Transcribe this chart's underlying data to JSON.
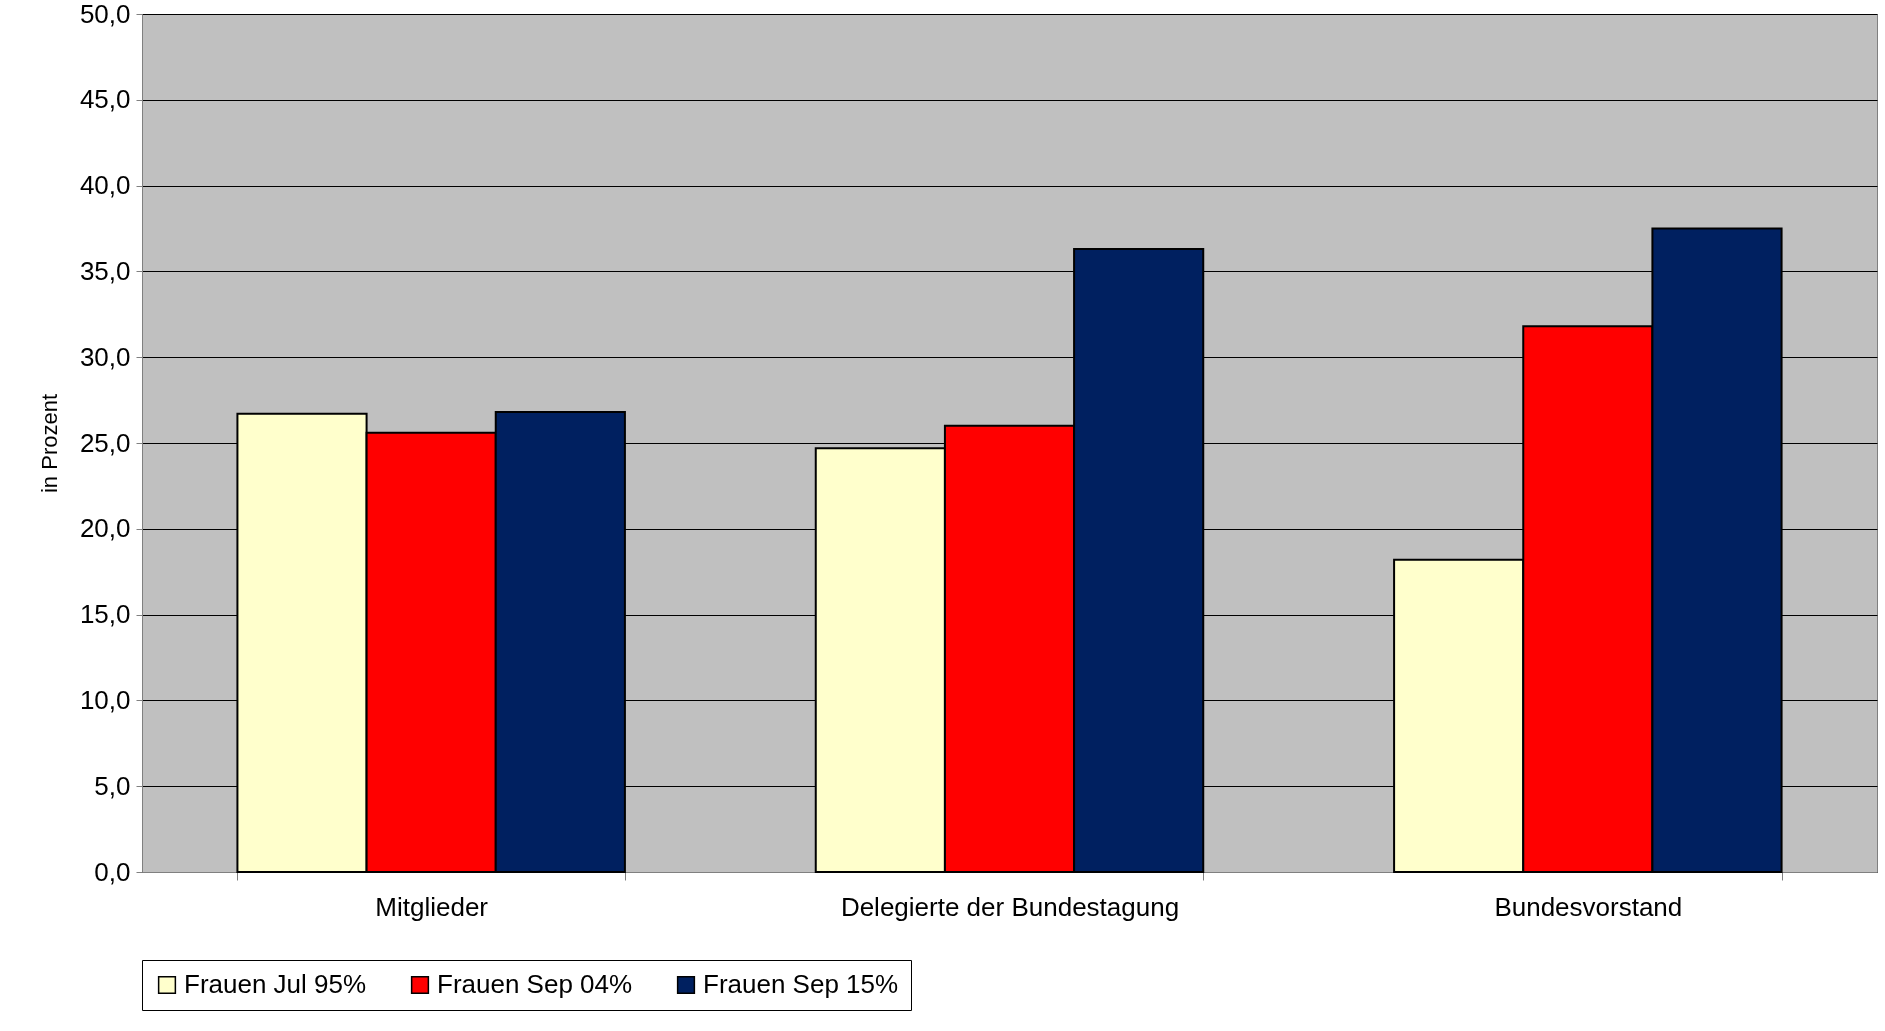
{
  "chart_data": {
    "type": "bar",
    "ylabel": "in Prozent",
    "categories": [
      "Mitglieder",
      "Delegierte der Bundestagung",
      "Bundesvorstand"
    ],
    "series": [
      {
        "name": "Frauen Jul 95%",
        "color": "#ffffcc",
        "values": [
          26.7,
          24.7,
          18.2
        ]
      },
      {
        "name": "Frauen Sep 04%",
        "color": "#ff0000",
        "values": [
          25.6,
          26.0,
          31.8
        ]
      },
      {
        "name": "Frauen Sep 15%",
        "color": "#002060",
        "values": [
          26.8,
          36.3,
          37.5
        ]
      }
    ],
    "ylim": [
      0,
      50
    ],
    "yticks": [
      {
        "value": 0,
        "label": "0,0"
      },
      {
        "value": 5,
        "label": "5,0"
      },
      {
        "value": 10,
        "label": "10,0"
      },
      {
        "value": 15,
        "label": "15,0"
      },
      {
        "value": 20,
        "label": "20,0"
      },
      {
        "value": 25,
        "label": "25,0"
      },
      {
        "value": 30,
        "label": "30,0"
      },
      {
        "value": 35,
        "label": "35,0"
      },
      {
        "value": 40,
        "label": "40,0"
      },
      {
        "value": 45,
        "label": "45,0"
      },
      {
        "value": 50,
        "label": "50,0"
      }
    ],
    "grid": "y",
    "legend": "bottom"
  }
}
